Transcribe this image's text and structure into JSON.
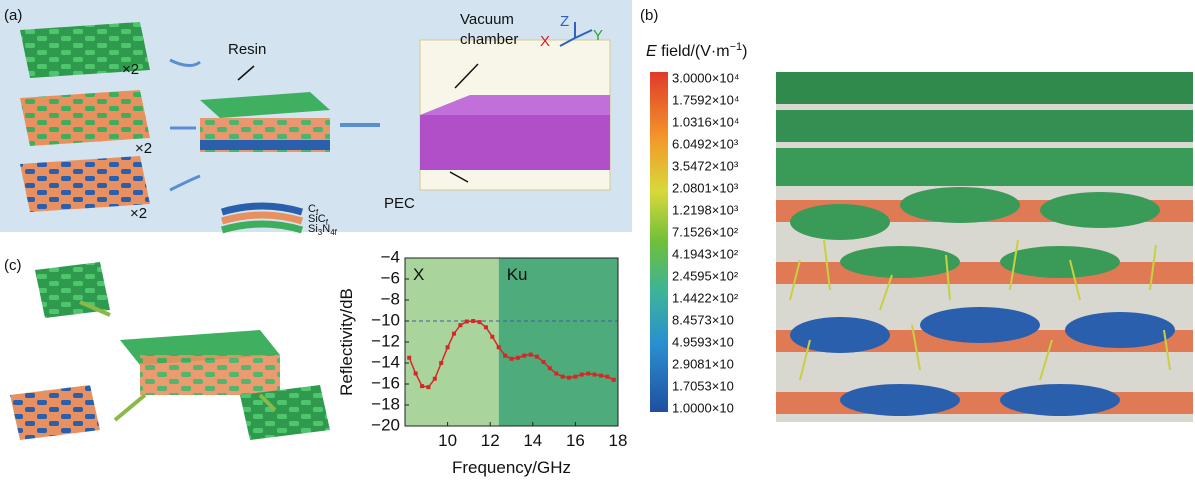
{
  "panel_a": {
    "label": "(a)",
    "multipliers": [
      "×2",
      "×2",
      "×2"
    ],
    "resin": "Resin",
    "chamber": [
      "Vacuum",
      "chamber"
    ],
    "pec": "PEC",
    "legend": [
      [
        "C",
        "f"
      ],
      [
        "SiC",
        "f"
      ],
      [
        "Si",
        "3",
        "N",
        "4f"
      ]
    ],
    "axes": [
      "X",
      "Y",
      "Z"
    ]
  },
  "panel_b": {
    "label": "(b)",
    "field_label": {
      "italic": "E",
      "text": " field/(V·m",
      "sup": "−1",
      "close": ")"
    },
    "colorbar": [
      "3.0000×10⁴",
      "1.7592×10⁴",
      "1.0316×10⁴",
      "6.0492×10³",
      "3.5472×10³",
      "2.0801×10³",
      "1.2198×10³",
      "7.1526×10²",
      "4.1943×10²",
      "2.4595×10²",
      "1.4422×10²",
      "8.4573×10",
      "4.9593×10",
      "2.9081×10",
      "1.7053×10",
      "1.0000×10"
    ]
  },
  "panel_c": {
    "label": "(c)"
  },
  "chart_data": {
    "type": "line",
    "xlabel": "Frequency/GHz",
    "ylabel": "Reflectivity/dB",
    "color": "#d62728",
    "x": [
      8.2,
      8.5,
      8.8,
      9.1,
      9.4,
      9.7,
      10.0,
      10.3,
      10.6,
      10.9,
      11.2,
      11.5,
      11.8,
      12.1,
      12.4,
      12.7,
      13.0,
      13.3,
      13.6,
      13.9,
      14.2,
      14.5,
      14.8,
      15.1,
      15.4,
      15.7,
      16.0,
      16.3,
      16.6,
      16.9,
      17.2,
      17.5,
      17.8
    ],
    "values": [
      -13.5,
      -15.0,
      -16.2,
      -16.3,
      -15.5,
      -14.0,
      -12.5,
      -11.2,
      -10.4,
      -10.05,
      -10.0,
      -10.1,
      -10.6,
      -11.5,
      -12.5,
      -13.3,
      -13.6,
      -13.5,
      -13.3,
      -13.2,
      -13.4,
      -13.9,
      -14.5,
      -15.0,
      -15.3,
      -15.4,
      -15.3,
      -15.1,
      -15.0,
      -15.1,
      -15.2,
      -15.3,
      -15.6
    ],
    "xlim": [
      8,
      18
    ],
    "ylim": [
      -20,
      -4
    ],
    "xticks": [
      10,
      12,
      14,
      16,
      18
    ],
    "yticks": [
      {
        "value": -4,
        "label": "−4"
      },
      {
        "value": -6,
        "label": "−6"
      },
      {
        "value": -8,
        "label": "−8"
      },
      {
        "value": -10,
        "label": "−10"
      },
      {
        "value": -12,
        "label": "−12"
      },
      {
        "value": -14,
        "label": "−14"
      },
      {
        "value": -16,
        "label": "−16"
      },
      {
        "value": -18,
        "label": "−18"
      },
      {
        "value": -20,
        "label": "−20"
      }
    ],
    "hline": -10,
    "regions": [
      {
        "name": "X",
        "from": 8,
        "to": 12.4,
        "color": "#a9d49b"
      },
      {
        "name": "Ku",
        "from": 12.4,
        "to": 18,
        "color": "#4dab7c"
      }
    ]
  }
}
